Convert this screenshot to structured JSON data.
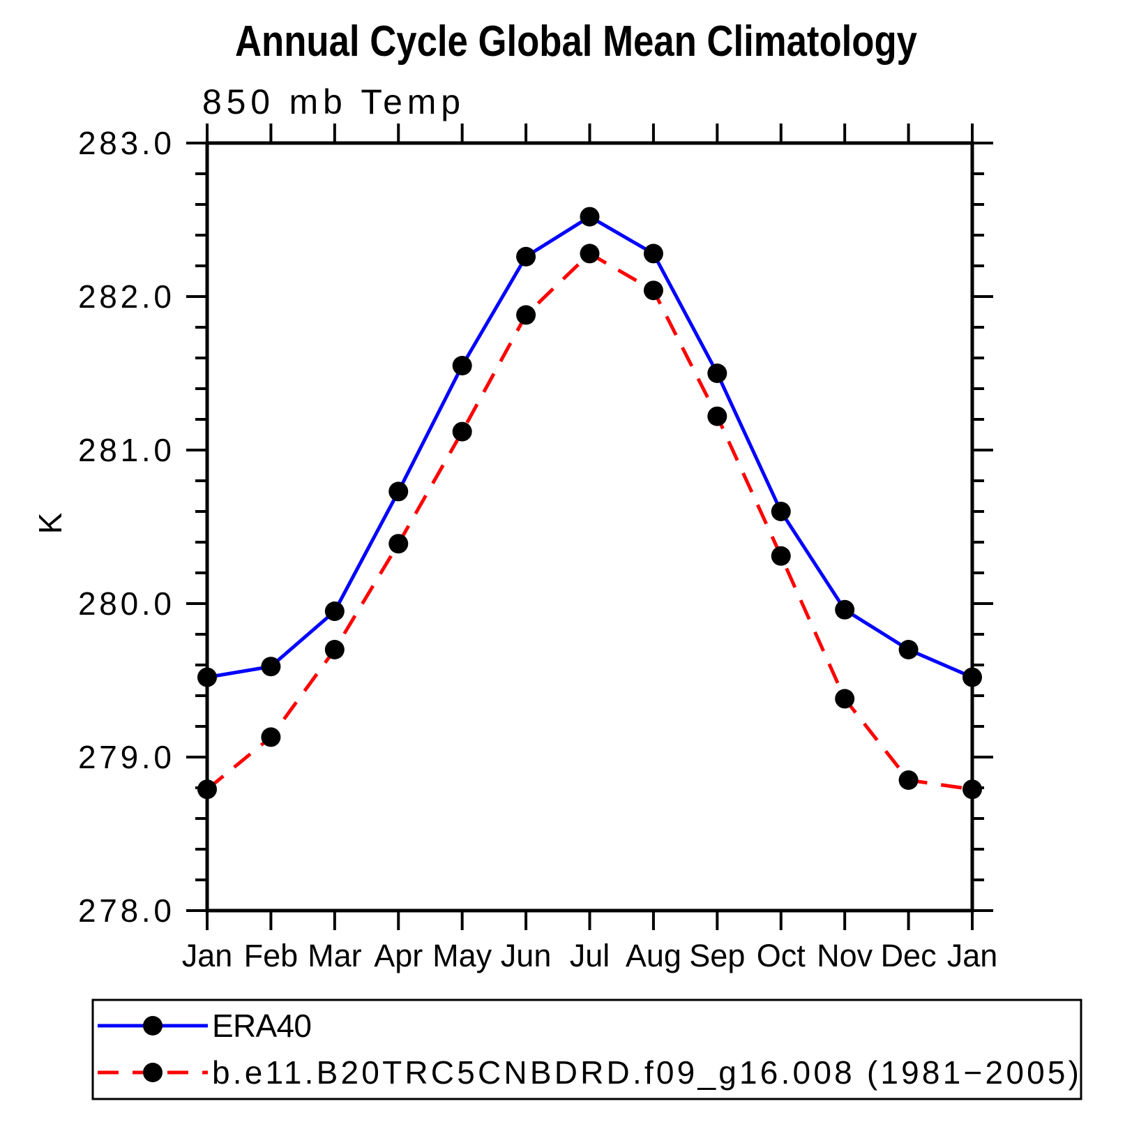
{
  "chart_data": {
    "type": "line",
    "title": "Annual Cycle Global Mean Climatology",
    "subtitle": "850 mb Temp",
    "ylabel": "K",
    "xlabel": "",
    "categories": [
      "Jan",
      "Feb",
      "Mar",
      "Apr",
      "May",
      "Jun",
      "Jul",
      "Aug",
      "Sep",
      "Oct",
      "Nov",
      "Dec",
      "Jan"
    ],
    "ylim": [
      278.0,
      283.0
    ],
    "ytick_major_step": 1.0,
    "ytick_minor_step": 0.2,
    "ytick_labels": [
      "278.0",
      "279.0",
      "280.0",
      "281.0",
      "282.0",
      "283.0"
    ],
    "grid": false,
    "legend_position": "bottom-left-box",
    "marker": "filled-circle",
    "marker_color": "#000000",
    "series": [
      {
        "name": "ERA40",
        "color": "#0000ff",
        "style": "solid",
        "values": [
          279.52,
          279.59,
          279.95,
          280.73,
          281.55,
          282.26,
          282.52,
          282.28,
          281.5,
          280.6,
          279.96,
          279.7,
          279.52
        ]
      },
      {
        "name": "b.e11.B20TRC5CNBDRD.f09_g16.008 (1981−2005)",
        "color": "#ff0000",
        "style": "dashed",
        "values": [
          278.79,
          279.13,
          279.7,
          280.39,
          281.12,
          281.88,
          282.28,
          282.04,
          281.22,
          280.31,
          279.38,
          278.85,
          278.79
        ]
      }
    ]
  }
}
